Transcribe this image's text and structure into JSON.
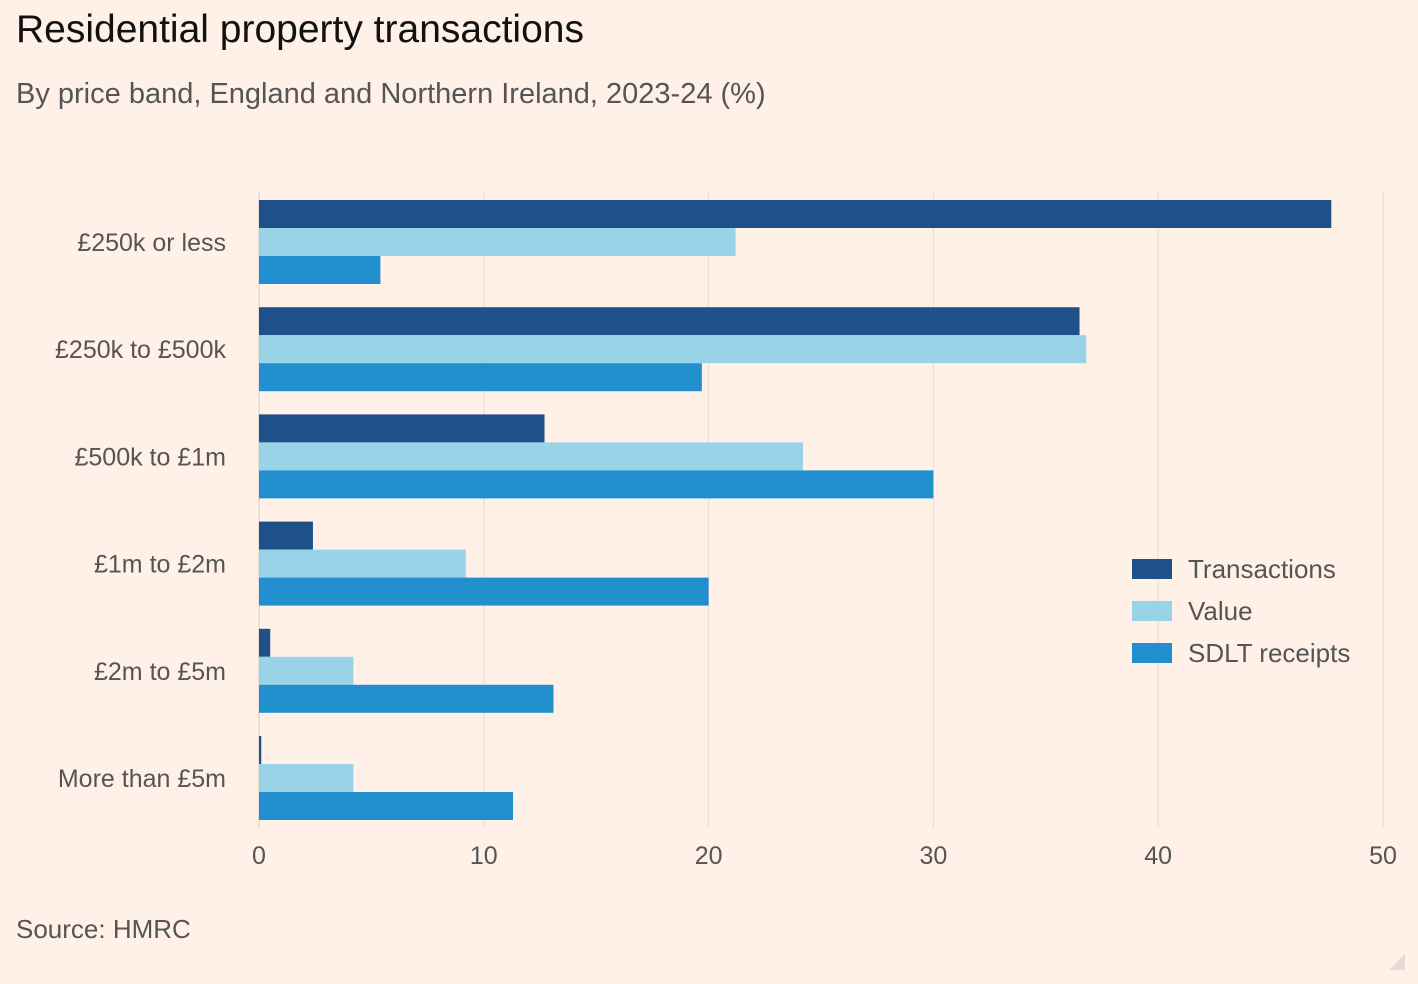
{
  "chart_data": {
    "type": "bar",
    "orientation": "horizontal",
    "title": "Residential property transactions",
    "subtitle": "By price band, England and Northern Ireland, 2023-24 (%)",
    "source": "Source: HMRC",
    "categories": [
      "£250k or less",
      "£250k to £500k",
      "£500k to £1m",
      "£1m to £2m",
      "£2m to £5m",
      "More than £5m"
    ],
    "series": [
      {
        "name": "Transactions",
        "color": "#1f5189",
        "values": [
          47.7,
          36.5,
          12.7,
          2.4,
          0.5,
          0.1
        ]
      },
      {
        "name": "Value",
        "color": "#98d3e8",
        "values": [
          21.2,
          36.8,
          24.2,
          9.2,
          4.2,
          4.2
        ]
      },
      {
        "name": "SDLT receipts",
        "color": "#218fce",
        "values": [
          5.4,
          19.7,
          30.0,
          20.0,
          13.1,
          11.3
        ]
      }
    ],
    "xlim": [
      0,
      50
    ],
    "xticks": [
      0,
      10,
      20,
      30,
      40,
      50
    ],
    "grid": true,
    "legend_position": "right"
  }
}
